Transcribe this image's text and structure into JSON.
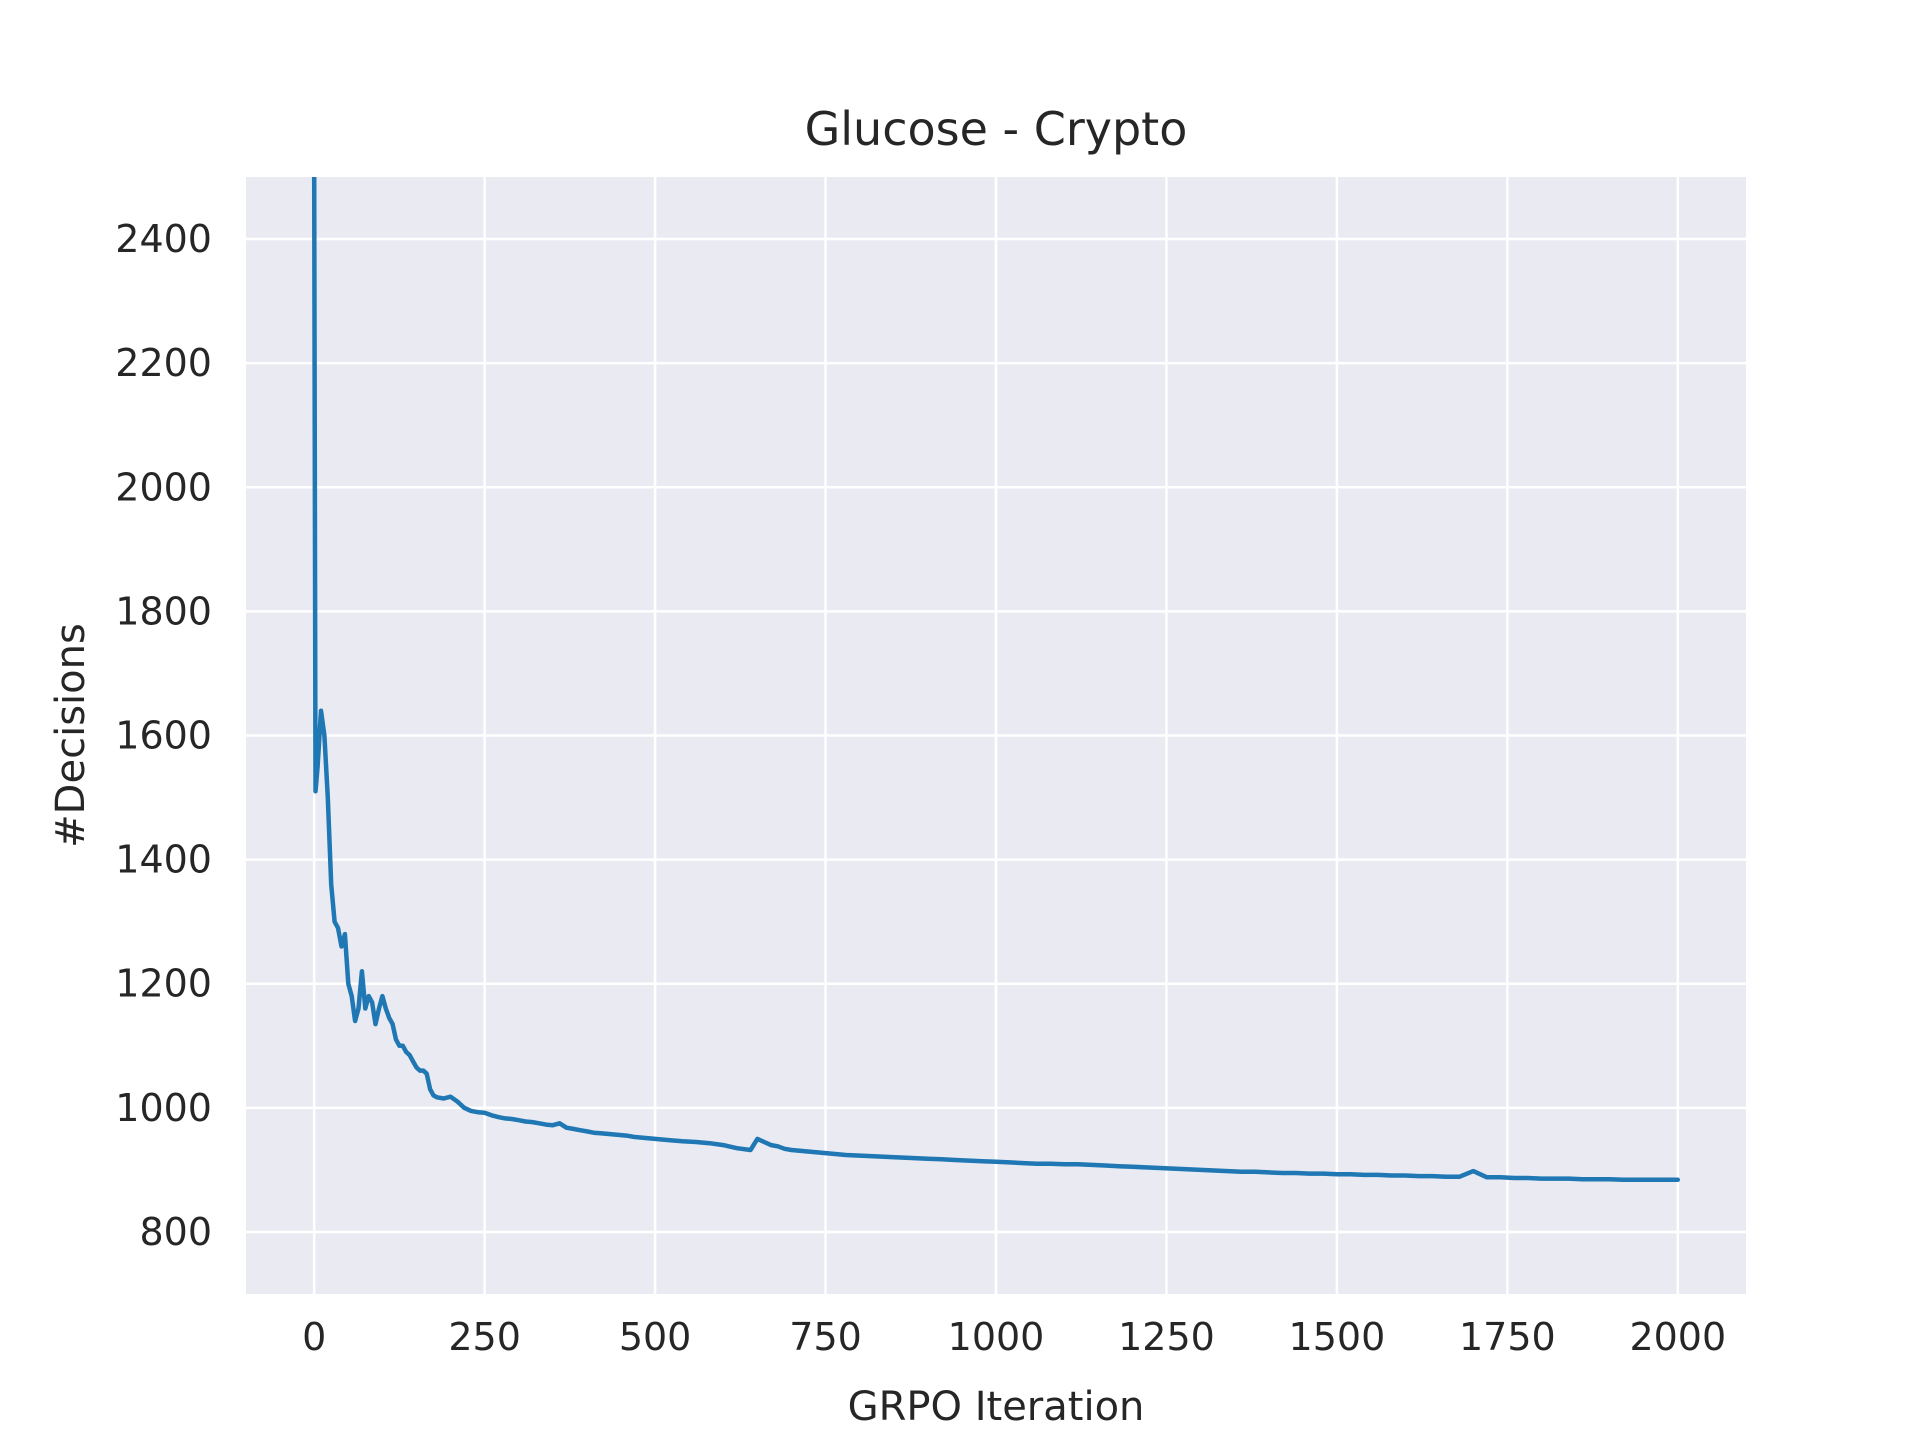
{
  "chart_data": {
    "type": "line",
    "title": "Glucose - Crypto",
    "xlabel": "GRPO Iteration",
    "ylabel": "#Decisions",
    "xlim": [
      -100,
      2100
    ],
    "ylim": [
      700,
      2500
    ],
    "xticks": [
      0,
      250,
      500,
      750,
      1000,
      1250,
      1500,
      1750,
      2000
    ],
    "yticks": [
      800,
      1000,
      1200,
      1400,
      1600,
      1800,
      2000,
      2200,
      2400
    ],
    "grid": true,
    "background_color": "#eaeaf2",
    "grid_color": "#ffffff",
    "line_color": "#1f77b4",
    "series": [
      {
        "x": [
          0,
          2,
          5,
          10,
          15,
          20,
          25,
          30,
          35,
          40,
          45,
          50,
          55,
          60,
          65,
          70,
          75,
          80,
          85,
          90,
          95,
          100,
          105,
          110,
          115,
          120,
          125,
          130,
          135,
          140,
          145,
          150,
          155,
          160,
          165,
          170,
          175,
          180,
          190,
          200,
          210,
          220,
          230,
          240,
          250,
          260,
          270,
          280,
          290,
          300,
          310,
          320,
          330,
          340,
          350,
          360,
          370,
          380,
          390,
          400,
          410,
          420,
          430,
          440,
          450,
          460,
          470,
          480,
          490,
          500,
          520,
          540,
          560,
          580,
          600,
          620,
          640,
          650,
          660,
          670,
          680,
          690,
          700,
          720,
          740,
          760,
          780,
          800,
          820,
          840,
          860,
          880,
          900,
          920,
          940,
          960,
          980,
          1000,
          1020,
          1040,
          1060,
          1080,
          1100,
          1120,
          1140,
          1160,
          1180,
          1200,
          1220,
          1240,
          1260,
          1280,
          1300,
          1320,
          1340,
          1360,
          1380,
          1400,
          1420,
          1440,
          1460,
          1480,
          1500,
          1520,
          1540,
          1560,
          1580,
          1600,
          1620,
          1640,
          1660,
          1680,
          1700,
          1720,
          1740,
          1760,
          1780,
          1800,
          1820,
          1840,
          1860,
          1880,
          1900,
          1920,
          1940,
          1960,
          1980,
          2000
        ],
        "y": [
          2500,
          1510,
          1550,
          1640,
          1600,
          1500,
          1360,
          1300,
          1290,
          1260,
          1280,
          1200,
          1180,
          1140,
          1160,
          1220,
          1160,
          1180,
          1170,
          1135,
          1160,
          1180,
          1160,
          1145,
          1135,
          1110,
          1100,
          1100,
          1090,
          1085,
          1075,
          1065,
          1060,
          1060,
          1055,
          1030,
          1020,
          1017,
          1015,
          1018,
          1010,
          1000,
          995,
          993,
          992,
          988,
          985,
          983,
          982,
          980,
          978,
          977,
          975,
          973,
          972,
          975,
          968,
          966,
          964,
          962,
          960,
          959,
          958,
          957,
          956,
          955,
          953,
          952,
          951,
          950,
          948,
          946,
          945,
          943,
          940,
          935,
          932,
          950,
          945,
          940,
          938,
          934,
          932,
          930,
          928,
          926,
          924,
          923,
          922,
          921,
          920,
          919,
          918,
          917,
          916,
          915,
          914,
          913,
          912,
          911,
          910,
          910,
          909,
          909,
          908,
          907,
          906,
          905,
          904,
          903,
          902,
          901,
          900,
          899,
          898,
          897,
          897,
          896,
          895,
          895,
          894,
          894,
          893,
          893,
          892,
          892,
          891,
          891,
          890,
          890,
          889,
          889,
          898,
          888,
          888,
          887,
          887,
          886,
          886,
          886,
          885,
          885,
          885,
          884,
          884,
          884,
          884,
          884
        ]
      }
    ]
  }
}
